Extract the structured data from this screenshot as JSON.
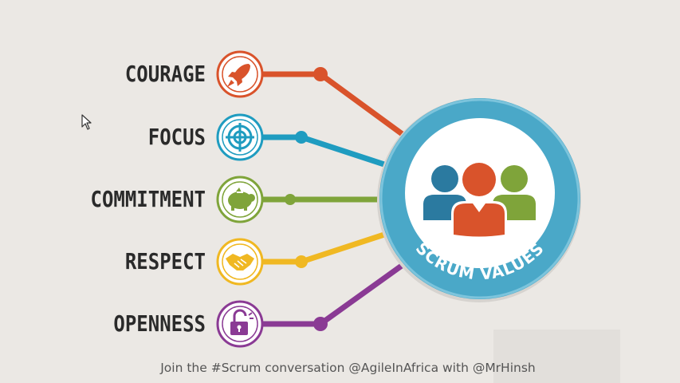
{
  "values": [
    {
      "label": "COURAGE",
      "icon": "rocket-icon",
      "color": "#d9532b"
    },
    {
      "label": "FOCUS",
      "icon": "target-icon",
      "color": "#1f9cc0"
    },
    {
      "label": "COMMITMENT",
      "icon": "piggy-bank-icon",
      "color": "#7fa43a"
    },
    {
      "label": "RESPECT",
      "icon": "handshake-icon",
      "color": "#f0b822"
    },
    {
      "label": "OPENNESS",
      "icon": "padlock-icon",
      "color": "#8a3a94"
    }
  ],
  "hub": {
    "title": "SCRUM VALUES",
    "icon": "people-group-icon",
    "ring_color": "#4aa8c8"
  },
  "footer": "Join the #Scrum conversation @AgileInAfrica with @MrHinsh"
}
